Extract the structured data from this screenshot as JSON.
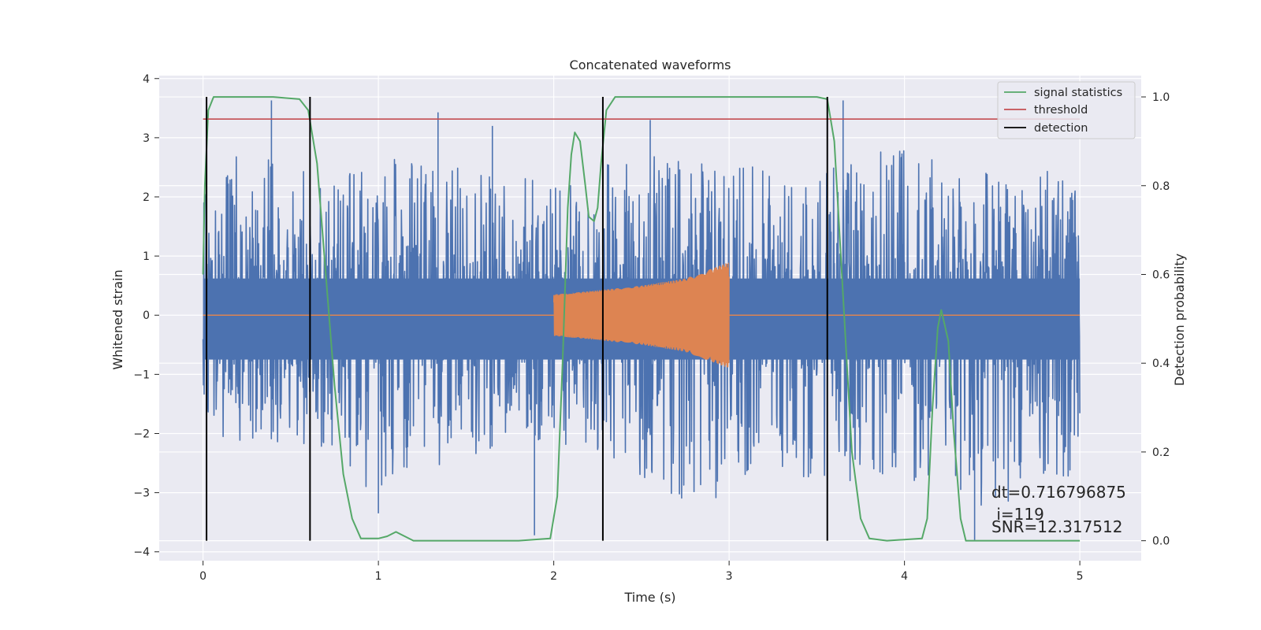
{
  "chart_data": {
    "type": "line",
    "title": "Concatenated waveforms",
    "xlabel": "Time (s)",
    "ylabel": "Whitened strain",
    "ylabel_right": "Detection probability",
    "xlim": [
      -0.25,
      5.35
    ],
    "ylim": [
      -4.15,
      4.05
    ],
    "ylim_right": [
      -0.045,
      1.048
    ],
    "x_ticks": [
      "0",
      "1",
      "2",
      "3",
      "4",
      "5"
    ],
    "y_ticks": [
      "4",
      "3",
      "2",
      "1",
      "0",
      "−1",
      "−2",
      "−3",
      "−4"
    ],
    "y_ticks_right": [
      "1.0",
      "0.8",
      "0.6",
      "0.4",
      "0.2",
      "0.0"
    ],
    "grid": true,
    "legend": {
      "placement": "top-right",
      "entries": [
        {
          "label": "signal statistics",
          "color": "#55a868"
        },
        {
          "label": "threshold",
          "color": "#c44e52"
        },
        {
          "label": "detection",
          "color": "#000000"
        }
      ]
    },
    "colors": {
      "noise": "#4c72b0",
      "injected_signal": "#dd8452",
      "signal_statistics": "#55a868",
      "threshold": "#c44e52",
      "detection": "#000000",
      "plot_background": "#eaeaf2",
      "grid": "#ffffff"
    },
    "series": [
      {
        "role": "noise",
        "axis": "left",
        "description_kind": "whitened noise envelope",
        "x": [
          0,
          0.25,
          0.5,
          0.75,
          1.0,
          1.25,
          1.5,
          1.75,
          2.0,
          2.25,
          2.5,
          2.75,
          3.0,
          3.25,
          3.5,
          3.75,
          4.0,
          4.25,
          4.5,
          4.75,
          5.0
        ],
        "upper": [
          2.4,
          3.0,
          2.6,
          2.5,
          2.6,
          3.4,
          2.6,
          2.6,
          2.4,
          2.7,
          3.0,
          2.8,
          2.8,
          2.5,
          2.5,
          2.9,
          3.0,
          2.7,
          2.7,
          2.6,
          2.6
        ],
        "lower": [
          -2.2,
          -2.3,
          -2.4,
          -2.5,
          -3.3,
          -2.8,
          -2.5,
          -2.4,
          -2.5,
          -2.5,
          -2.9,
          -3.3,
          -3.3,
          -2.8,
          -3.0,
          -3.0,
          -3.0,
          -2.9,
          -3.8,
          -2.8,
          -3.0
        ],
        "spikes": [
          [
            0.39,
            3.63
          ],
          [
            1.34,
            3.43
          ],
          [
            1.65,
            3.2
          ],
          [
            1.89,
            -3.72
          ],
          [
            2.55,
            3.3
          ],
          [
            3.65,
            3.63
          ],
          [
            4.4,
            -3.8
          ],
          [
            1.0,
            -3.35
          ]
        ]
      },
      {
        "role": "injected_signal",
        "axis": "left",
        "x": [
          2.0,
          2.25,
          2.5,
          2.75,
          3.0
        ],
        "amplitude": [
          0.35,
          0.42,
          0.5,
          0.62,
          0.9
        ]
      },
      {
        "name": "signal statistics",
        "axis": "right",
        "x": [
          0.0,
          0.01,
          0.03,
          0.06,
          0.1,
          0.2,
          0.4,
          0.55,
          0.6,
          0.65,
          0.7,
          0.75,
          0.8,
          0.85,
          0.9,
          1.0,
          1.05,
          1.1,
          1.15,
          1.2,
          1.5,
          1.8,
          1.98,
          2.02,
          2.05,
          2.08,
          2.1,
          2.12,
          2.15,
          2.18,
          2.2,
          2.23,
          2.25,
          2.27,
          2.3,
          2.35,
          2.5,
          3.0,
          3.5,
          3.56,
          3.6,
          3.65,
          3.7,
          3.75,
          3.8,
          3.9,
          4.1,
          4.13,
          4.16,
          4.19,
          4.21,
          4.25,
          4.28,
          4.32,
          4.35,
          4.4,
          5.0
        ],
        "y": [
          0.6,
          0.8,
          0.97,
          1.0,
          1.0,
          1.0,
          1.0,
          0.995,
          0.97,
          0.85,
          0.6,
          0.35,
          0.15,
          0.05,
          0.005,
          0.005,
          0.01,
          0.02,
          0.01,
          0.0,
          0.0,
          0.0,
          0.005,
          0.1,
          0.4,
          0.75,
          0.87,
          0.92,
          0.9,
          0.8,
          0.73,
          0.72,
          0.75,
          0.85,
          0.97,
          1.0,
          1.0,
          1.0,
          1.0,
          0.995,
          0.9,
          0.55,
          0.2,
          0.05,
          0.005,
          0.0,
          0.005,
          0.05,
          0.3,
          0.48,
          0.52,
          0.45,
          0.25,
          0.05,
          0.0,
          0.0,
          0.0
        ]
      },
      {
        "name": "threshold",
        "axis": "right",
        "x": [
          0,
          5.0
        ],
        "y": [
          0.95,
          0.95
        ]
      },
      {
        "name": "detection",
        "axis": "right",
        "type": "vlines",
        "x": [
          0.02,
          0.61,
          2.28,
          3.56
        ],
        "ymin": 0.0,
        "ymax": 1.0
      }
    ],
    "annotations": [
      "dt=0.716796875",
      " i=119",
      "SNR=12.317512"
    ]
  }
}
